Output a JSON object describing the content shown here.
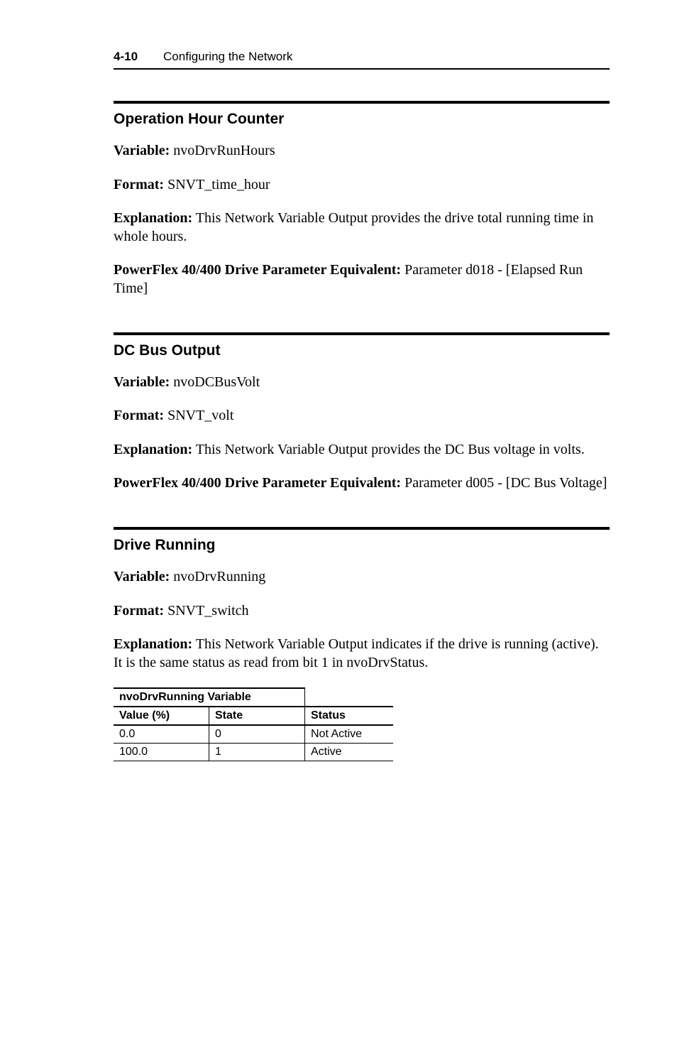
{
  "header": {
    "page_num": "4-10",
    "chapter_title": "Configuring the Network"
  },
  "sections": [
    {
      "title": "Operation Hour Counter",
      "paragraphs": [
        {
          "label": "Variable:",
          "text": " nvoDrvRunHours"
        },
        {
          "label": "Format:",
          "text": " SNVT_time_hour"
        },
        {
          "label": "Explanation:",
          "text": " This Network Variable Output provides the drive total running time in whole hours."
        },
        {
          "label": "PowerFlex 40/400 Drive Parameter Equivalent:",
          "text": " Parameter d018 - [Elapsed Run Time]"
        }
      ]
    },
    {
      "title": "DC Bus Output",
      "paragraphs": [
        {
          "label": "Variable:",
          "text": " nvoDCBusVolt"
        },
        {
          "label": "Format:",
          "text": " SNVT_volt"
        },
        {
          "label": "Explanation:",
          "text": " This Network Variable Output provides the DC Bus voltage in volts."
        },
        {
          "label": "PowerFlex 40/400 Drive Parameter Equivalent:",
          "text": " Parameter d005 - [DC Bus Voltage]"
        }
      ]
    },
    {
      "title": "Drive Running",
      "paragraphs": [
        {
          "label": "Variable:",
          "text": " nvoDrvRunning"
        },
        {
          "label": "Format:",
          "text": " SNVT_switch"
        },
        {
          "label": "Explanation:",
          "text": " This Network Variable Output indicates if the drive is running (active). It is the same status as read from bit 1 in nvoDrvStatus."
        }
      ]
    }
  ],
  "table": {
    "group_header": "nvoDrvRunning Variable",
    "columns": [
      "Value (%)",
      "State",
      "Status"
    ],
    "rows": [
      [
        "0.0",
        "0",
        "Not Active"
      ],
      [
        "100.0",
        "1",
        "Active"
      ]
    ]
  }
}
